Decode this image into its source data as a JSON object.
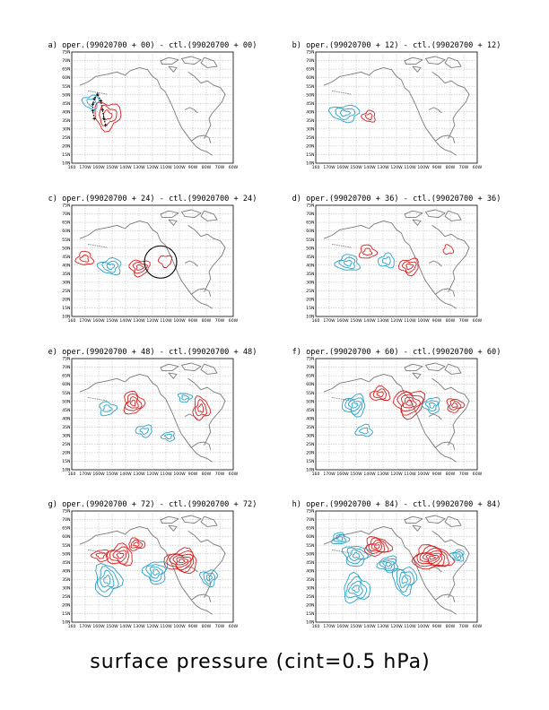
{
  "caption": "surface pressure (cint=0.5 hPa)",
  "lon_labels": [
    "160",
    "170W",
    "160W",
    "150W",
    "140W",
    "130W",
    "120W",
    "110W",
    "100W",
    "90W",
    "80W",
    "70W",
    "60W"
  ],
  "lat_labels": [
    "75N",
    "70N",
    "65N",
    "60N",
    "55N",
    "50N",
    "45N",
    "40N",
    "35N",
    "30N",
    "25N",
    "20N",
    "15N",
    "10N"
  ],
  "colors": {
    "positive": "#d62020",
    "negative": "#2aa0c8",
    "coast": "#7a7a7a",
    "grid": "#888888",
    "track": "#000000"
  },
  "panels": [
    {
      "title": "a) oper.(99020700 + 00) - ctl.(99020700 + 00)",
      "lead": 0,
      "features": [
        "forecast-track"
      ]
    },
    {
      "title": "b) oper.(99020700 + 12) - ctl.(99020700 + 12)",
      "lead": 12,
      "features": []
    },
    {
      "title": "c) oper.(99020700 + 24) - ctl.(99020700 + 24)",
      "lead": 24,
      "features": [
        "highlight-circle"
      ]
    },
    {
      "title": "d) oper.(99020700 + 36) - ctl.(99020700 + 36)",
      "lead": 36,
      "features": []
    },
    {
      "title": "e) oper.(99020700 + 48) - ctl.(99020700 + 48)",
      "lead": 48,
      "features": []
    },
    {
      "title": "f) oper.(99020700 + 60) - ctl.(99020700 + 60)",
      "lead": 60,
      "features": []
    },
    {
      "title": "g) oper.(99020700 + 72) - ctl.(99020700 + 72)",
      "lead": 72,
      "features": []
    },
    {
      "title": "h) oper.(99020700 + 84) - ctl.(99020700 + 84)",
      "lead": 84,
      "features": []
    }
  ]
}
